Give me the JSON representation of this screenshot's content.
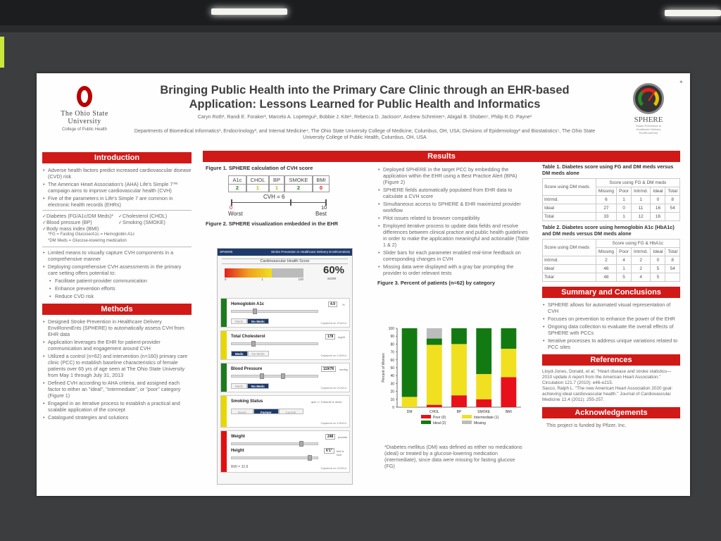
{
  "poster": {
    "title": "Bringing Public Health into the Primary Care Clinic through an EHR-based Application: Lessons Learned for Public Health and Informatics",
    "authors": "Caryn Roth¹, Randi E. Foraker², Marcelo A. Lopetegui¹, Bobbie J. Kite¹, Rebecca D. Jackson³, Andrew Schreiner⁴, Abigail B. Shoben⁵, Philip R.O. Payne¹",
    "departments": "Departments of Biomedical Informatics¹, Endocrinology³, and Internal Medicine⁴, The Ohio State University College of Medicine, Columbus, OH, USA; Divisions of Epidemiology² and Biostatistics⁵, The Ohio State University College of Public Health, Columbus, OH, USA",
    "logo_name": "The Ohio State University",
    "logo_college": "College of Public Health",
    "sphere_logo": "SPHERE",
    "sphere_logo_sub": "Stroke Prevention in Healthcare Delivery EnviRonmEnts"
  },
  "introduction": {
    "heading": "Introduction",
    "bullets": [
      "Adverse health factors predict increased cardiovascular disease (CVD) risk",
      "The American Heart Association's (AHA) Life's Simple 7™ campaign aims to improve cardiovascular health (CVH)",
      "Five of the parameters in Life's Simple 7 are common in electronic health records (EHRs)"
    ],
    "checks": [
      "✓Diabetes (FG/A1c/DM Meds)*",
      "✓Cholesterol (CHOL)",
      "✓Blood pressure (BP)",
      "✓Smoking (SMOKE)",
      "✓Body mass index (BMI)"
    ],
    "notes": [
      "*FG = Fasting Glucose/A1c = Hemoglobin A1c",
      "*DM Meds = Glucose-lowering medication"
    ],
    "bullets2": [
      "Limited means to visually capture CVH components in a comprehensive manner",
      "Deploying comprehensive CVH assessments in the primary care setting offers potential to:"
    ],
    "sub_bullets": [
      "Facilitate patient-provider communication",
      "Enhance prevention efforts",
      "Reduce CVD risk"
    ]
  },
  "methods": {
    "heading": "Methods",
    "bullets": [
      "Designed Stroke Prevention in Healthcare Delivery EnviRonmEnts (SPHERE) to automatically assess CVH from EHR data",
      "Application leverages the EHR for patient-provider communication and engagement around CVH",
      "Utilized a control (n=62) and intervention (n=160) primary care clinic (PCC) to establish baseline characteristics of female patients over 65 yrs of age seen at The Ohio State University from May 1 through July 31, 2013",
      "Defined CVH according to AHA criteria, and assigned each factor to either an \"ideal\", \"intermediate\", or \"poor\" category (Figure 1)",
      "Engaged in an iterative process to establish a practical and scalable application of the concept",
      "Catalogued strategies and solutions"
    ]
  },
  "results": {
    "heading": "Results",
    "fig1": {
      "caption": "Figure 1. SPHERE calculation of CVH score",
      "labels": [
        "A1c",
        "CHOL",
        "BP",
        "SMOKE",
        "BMI"
      ],
      "values": [
        "2",
        "1",
        "1",
        "2",
        "0"
      ],
      "score": "CVH = 6",
      "min": "0",
      "max": "10",
      "worst": "Worst",
      "best": "Best"
    },
    "fig2": {
      "caption": "Figure 2. SPHERE visualization embedded in the EHR",
      "brand": "SPHERE",
      "brand_sub": "Stroke Prevention in Healthcare Delivery EnviRonmEnts",
      "score_title": "Cardiovascular Health Score",
      "score_pct": 0.6,
      "score_text": "60%",
      "score_label": "score",
      "tick_min": "0",
      "tick_max": "100",
      "tick_mid": "1",
      "a1c_name": "Hemoglobin A1c",
      "a1c_value": "4.9",
      "a1c_unit": "%",
      "a1c_btn1": "Meds",
      "a1c_btn2": "No Meds",
      "a1c_cap": "Captured on 2/14/14",
      "chol_name": "Total Cholesterol",
      "chol_value": "178",
      "chol_unit": "mg/dl",
      "chol_btn1": "Meds",
      "chol_btn2": "No Meds",
      "chol_cap": "Captured on 1/20/14",
      "bp_name": "Blood Pressure",
      "bp_value": "119/78",
      "bp_unit": "mmHg",
      "bp_btn1": "Meds",
      "bp_btn2": "No Meds",
      "bp_cap": "Captured on 2/13/14",
      "smoke_name": "Smoking Status",
      "smoke_note": "quit >= 12month & never",
      "smoke_btn1": "Never",
      "smoke_btn2": "Former",
      "smoke_btn3": "Current",
      "smoke_cap": "Captured on 1/20/14",
      "weight_name": "Weight",
      "weight_value": "248",
      "weight_unit": "pounds",
      "height_name": "Height",
      "height_value": "6'1\"",
      "height_unit": "feet & inch",
      "bmi_text": "BMI = 32.8",
      "bmi_cap": "Captured on 2/13/14"
    },
    "bullets": [
      "Deployed SPHERE in the target PCC by embedding the application within the EHR using a Best Practice Alert (BPA) (Figure 2)",
      "SPHERE fields automatically populated from EHR data to calculate a CVH score",
      "Simultaneous access to SPHERE & EHR maximized provider workflow",
      "Pilot issues related to browser compatibility",
      "Employed iterative process to update data fields and resolve differences between clinical practice and public health guidelines in order to make the application meaningful and actionable (Table 1 & 2)",
      "Slider bars for each parameter enabled real-time feedback on corresponding changes in CVH",
      "Missing data were displayed with a gray bar prompting the provider to order relevant tests"
    ],
    "fig3_caption": "Figure 3. Percent of patients (n=62) by category",
    "footnote": "*Diabetes mellitus (DM) was defined as either no medications (ideal) or treated by a glucose-lowering medication (intermediate), since data were missing for fasting glucose (FG)"
  },
  "tables": {
    "t1_caption": "Table 1. Diabetes score using FG and DM meds versus DM meds alone",
    "t1_group": "Score using FG & DM meds",
    "t1_rowhead": "Score using DM meds",
    "t2_caption": "Table 2. Diabetes score using hemoglobin A1c (HbA1c) and DM meds versus DM meds alone",
    "t2_group": "Score using FG & HbA1c",
    "t2_rowhead": "Score using DM meds",
    "columns": [
      "Missing",
      "Poor",
      "Intrmd.",
      "Ideal",
      "Total"
    ],
    "t1_rows": [
      {
        "label": "Intrmd.",
        "cells": [
          "6",
          "1",
          "1",
          "0",
          "8"
        ]
      },
      {
        "label": "Ideal",
        "cells": [
          "27",
          "0",
          "11",
          "16",
          "54"
        ]
      },
      {
        "label": "Total",
        "cells": [
          "33",
          "1",
          "12",
          "16",
          ""
        ]
      }
    ],
    "t2_rows": [
      {
        "label": "Intrmd.",
        "cells": [
          "2",
          "4",
          "2",
          "0",
          "8"
        ]
      },
      {
        "label": "Ideal",
        "cells": [
          "46",
          "1",
          "2",
          "5",
          "54"
        ]
      },
      {
        "label": "Total",
        "cells": [
          "48",
          "5",
          "4",
          "5",
          ""
        ]
      }
    ]
  },
  "summary": {
    "heading": "Summary and Conclusions",
    "bullets": [
      "SPHERE allows for automated visual representation of CVH",
      "Focuses on prevention to enhance the power of the EHR",
      "Ongoing data collection to evaluate the overall effects of SPHERE with PCCs",
      "Iterative processes to address unique variations related to PCC sites"
    ]
  },
  "references": {
    "heading": "References",
    "text": [
      "Lloyd-Jones, Donald, et al. \"Heart disease and stroke statistics—2010 update A report from the American Heart Association.\" Circulation 121.7 (2010): e46-e215.",
      "Sacco, Ralph L. \"The new American Heart Association 2020 goal: achieving ideal cardiovascular health.\" Journal of Cardiovascular Medicine 12.4 (2011): 255-257."
    ]
  },
  "acknowledgements": {
    "heading": "Acknowledgements",
    "text": "This project is funded by Pfizer, Inc."
  },
  "chart_data": {
    "type": "bar",
    "stacked": true,
    "categories": [
      "DM",
      "CHOL",
      "BP",
      "SMOKE",
      "BMI"
    ],
    "ylabel": "Percent of Women",
    "ylim": [
      0,
      100
    ],
    "yticks": [
      "0",
      "10",
      "20",
      "30",
      "40",
      "50",
      "60",
      "70",
      "80",
      "90",
      "100"
    ],
    "series": [
      {
        "name": "Poor (0)",
        "color": "#e8101a",
        "values": [
          0,
          3,
          15,
          10,
          38
        ]
      },
      {
        "name": "Intermediate (1)",
        "color": "#f0e020",
        "values": [
          13,
          76,
          65,
          32,
          36
        ]
      },
      {
        "name": "Ideal (2)",
        "color": "#137a12",
        "values": [
          87,
          8,
          20,
          58,
          26
        ]
      },
      {
        "name": "Missing",
        "color": "#bcbcbc",
        "values": [
          0,
          13,
          0,
          0,
          0
        ]
      }
    ],
    "legend_labels": [
      "Poor (0)",
      "Intermediate (1)",
      "Ideal (2)",
      "Missing"
    ],
    "legend": "bottom"
  }
}
